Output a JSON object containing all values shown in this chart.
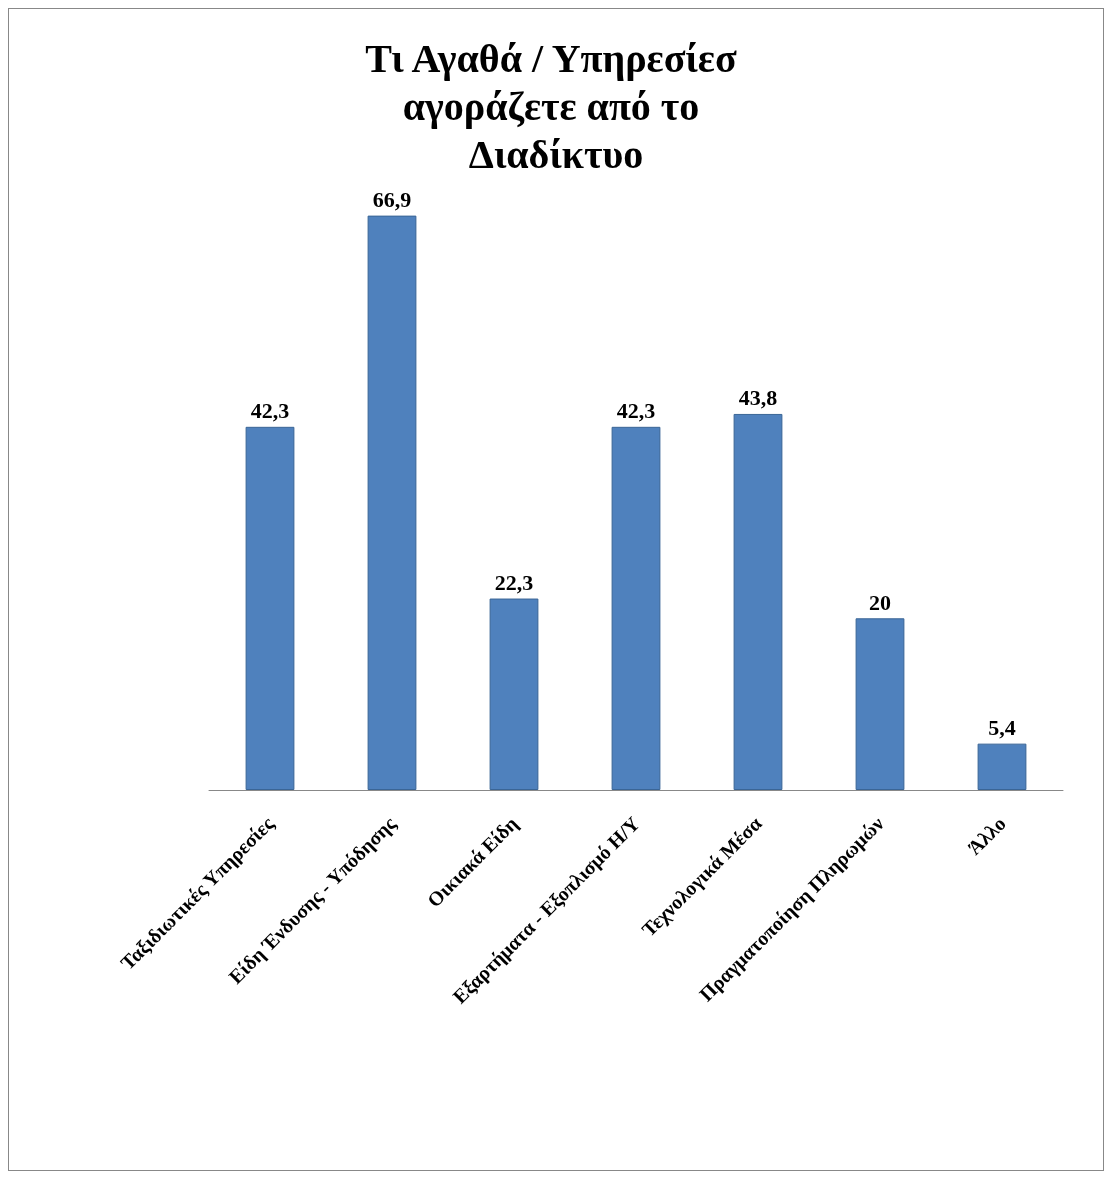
{
  "chart_data": {
    "type": "bar",
    "title": "Τι Αγαθά / Υπηρεσίεσ αγοράζετε από το Διαδίκτυο",
    "categories": [
      "Ταξιδιωτικές Υπηρεσίες",
      "Είδη Ένδυσης - Υπόδησης",
      "Οικιακά Είδη",
      "Εξαρτήματα - Εξοπλισμό Η/Υ",
      "Τεχνολογικά Μέσα",
      "Πραγματοποίηση Πληρωμών",
      "Άλλο"
    ],
    "values": [
      42.3,
      66.9,
      22.3,
      42.3,
      43.8,
      20,
      5.4
    ],
    "value_labels": [
      "42,3",
      "66,9",
      "22,3",
      "42,3",
      "43,8",
      "20",
      "5,4"
    ],
    "color": "#4f81bd"
  }
}
